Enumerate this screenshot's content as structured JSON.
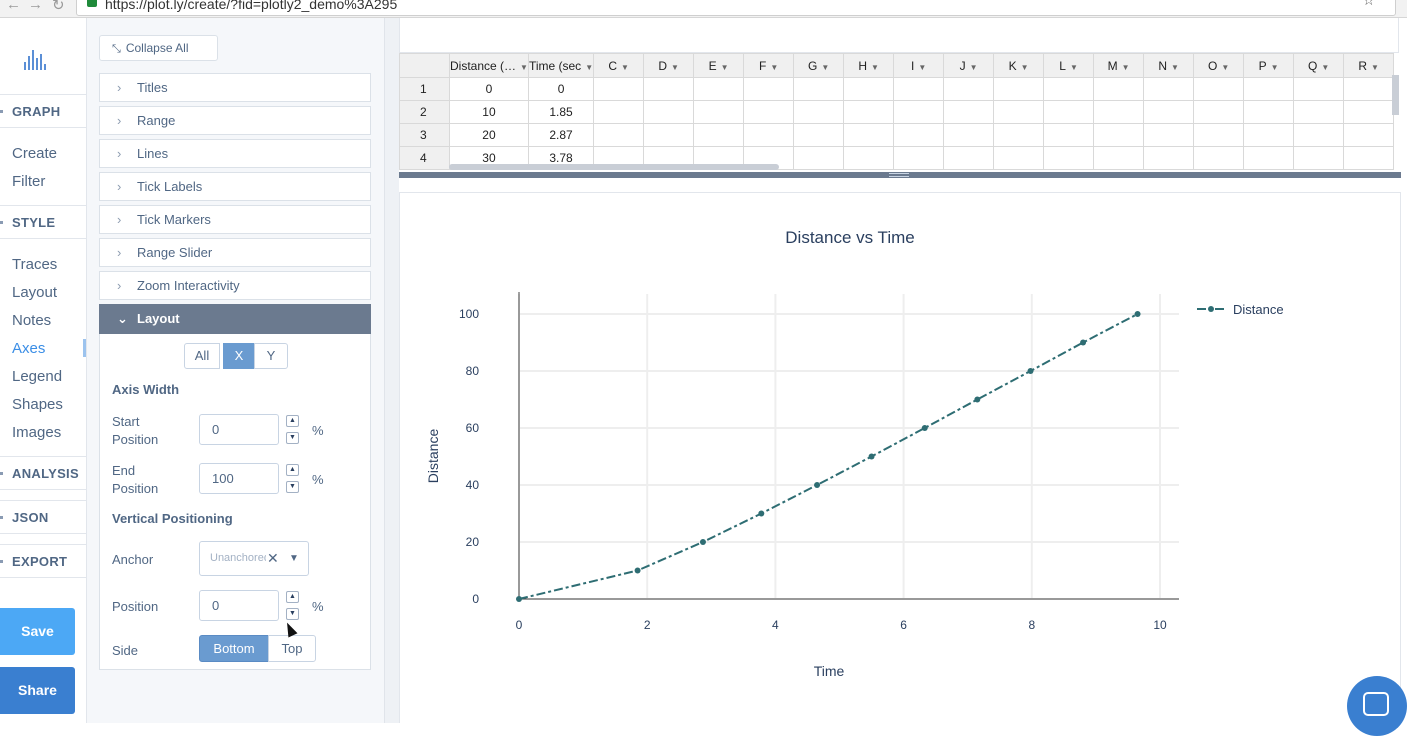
{
  "browser": {
    "url": "https://plot.ly/create/?fid=plotly2_demo%3A295",
    "back_icon": "arrow-left",
    "forward_icon": "arrow-right",
    "reload_icon": "reload"
  },
  "nav": {
    "sections": [
      {
        "label": "GRAPH",
        "items": [
          "Create",
          "Filter"
        ]
      },
      {
        "label": "STYLE",
        "items": [
          "Traces",
          "Layout",
          "Notes",
          "Axes",
          "Legend",
          "Shapes",
          "Images"
        ]
      },
      {
        "label": "ANALYSIS"
      },
      {
        "label": "JSON"
      },
      {
        "label": "EXPORT"
      }
    ],
    "active_item": "Axes",
    "save_label": "Save",
    "share_label": "Share"
  },
  "panel": {
    "collapse_label": "Collapse All",
    "folds": [
      "Titles",
      "Range",
      "Lines",
      "Tick Labels",
      "Tick Markers",
      "Range Slider",
      "Zoom Interactivity",
      "Layout"
    ],
    "open_fold": "Layout",
    "axis_tabs": [
      "All",
      "X",
      "Y"
    ],
    "active_axis_tab": "X",
    "axis_width_label": "Axis Width",
    "start_position_label": "Start Position",
    "start_position_value": "0",
    "end_position_label": "End Position",
    "end_position_value": "100",
    "percent": "%",
    "vertical_positioning_label": "Vertical Positioning",
    "anchor_label": "Anchor",
    "anchor_value": "Unanchored",
    "position_label": "Position",
    "position_value": "0",
    "side_label": "Side",
    "side_options": [
      "Bottom",
      "Top"
    ],
    "active_side": "Bottom"
  },
  "grid": {
    "columns": [
      "Distance (…",
      "Time (sec",
      "C",
      "D",
      "E",
      "F",
      "G",
      "H",
      "I",
      "J",
      "K",
      "L",
      "M",
      "N",
      "O",
      "P",
      "Q",
      "R"
    ],
    "rows": [
      {
        "n": "1",
        "cells": [
          "0",
          "0"
        ]
      },
      {
        "n": "2",
        "cells": [
          "10",
          "1.85"
        ]
      },
      {
        "n": "3",
        "cells": [
          "20",
          "2.87"
        ]
      },
      {
        "n": "4",
        "cells": [
          "30",
          "3.78"
        ]
      }
    ]
  },
  "chart_data": {
    "type": "line",
    "title": "Distance vs Time",
    "xlabel": "Time",
    "ylabel": "Distance",
    "xlim": [
      0,
      10
    ],
    "ylim": [
      0,
      100
    ],
    "xticks": [
      0,
      2,
      4,
      6,
      8,
      10
    ],
    "yticks": [
      0,
      20,
      40,
      60,
      80,
      100
    ],
    "grid": true,
    "legend_position": "top-right",
    "line_style": "dashdot",
    "color": "#2e6d73",
    "series": [
      {
        "name": "Distance",
        "x": [
          0,
          1.85,
          2.87,
          3.78,
          4.65,
          5.5,
          6.33,
          7.15,
          7.98,
          8.8,
          9.65
        ],
        "y": [
          0,
          10,
          20,
          30,
          40,
          50,
          60,
          70,
          80,
          90,
          100
        ]
      }
    ]
  }
}
